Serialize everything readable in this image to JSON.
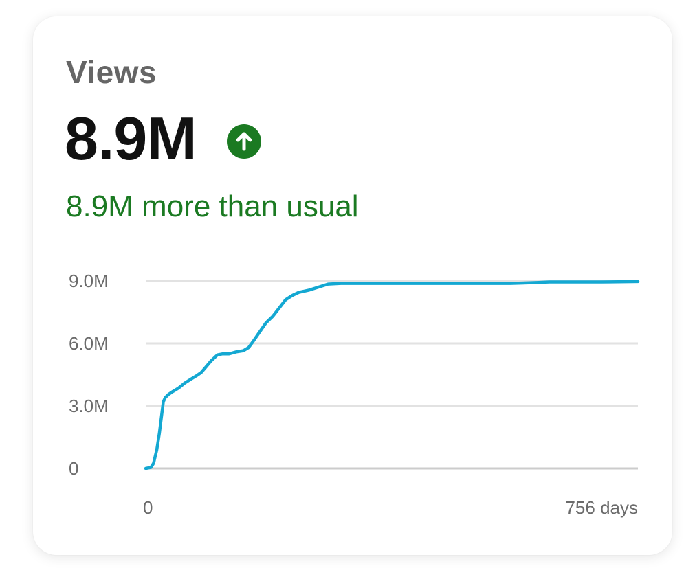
{
  "card": {
    "title": "Views",
    "value": "8.9M",
    "trend_icon": "arrow-up-circle-icon",
    "delta_text": "8.9M more than usual"
  },
  "colors": {
    "line": "#14a8d2",
    "positive": "#1b7a22",
    "grid": "#e2e2e2",
    "baseline": "#cccccc"
  },
  "chart_data": {
    "type": "line",
    "title": "",
    "xlabel": "",
    "ylabel": "",
    "x_ticks": [
      {
        "x": 0,
        "label": "0"
      },
      {
        "x": 756,
        "label": "756 days"
      }
    ],
    "y_ticks": [
      {
        "y": 0,
        "label": "0"
      },
      {
        "y": 3.0,
        "label": "3.0M"
      },
      {
        "y": 6.0,
        "label": "6.0M"
      },
      {
        "y": 9.0,
        "label": "9.0M"
      }
    ],
    "xlim": [
      0,
      756
    ],
    "ylim": [
      0,
      9.0
    ],
    "y_unit": "M",
    "grid": true,
    "series": [
      {
        "x": [
          0,
          8,
          12,
          17,
          21,
          25,
          27,
          30,
          35,
          42,
          50,
          60,
          70,
          78,
          85,
          92,
          100,
          110,
          118,
          128,
          140,
          150,
          158,
          165,
          175,
          185,
          195,
          205,
          215,
          225,
          235,
          250,
          265,
          280,
          300,
          350,
          400,
          450,
          500,
          560,
          600,
          620,
          650,
          700,
          756
        ],
        "y": [
          0,
          0.05,
          0.25,
          0.9,
          1.7,
          2.7,
          3.2,
          3.4,
          3.55,
          3.7,
          3.85,
          4.1,
          4.3,
          4.45,
          4.6,
          4.85,
          5.15,
          5.45,
          5.5,
          5.5,
          5.6,
          5.65,
          5.8,
          6.1,
          6.55,
          7.0,
          7.3,
          7.7,
          8.1,
          8.3,
          8.45,
          8.55,
          8.7,
          8.85,
          8.88,
          8.88,
          8.88,
          8.88,
          8.88,
          8.88,
          8.92,
          8.95,
          8.95,
          8.95,
          8.97
        ]
      }
    ]
  }
}
